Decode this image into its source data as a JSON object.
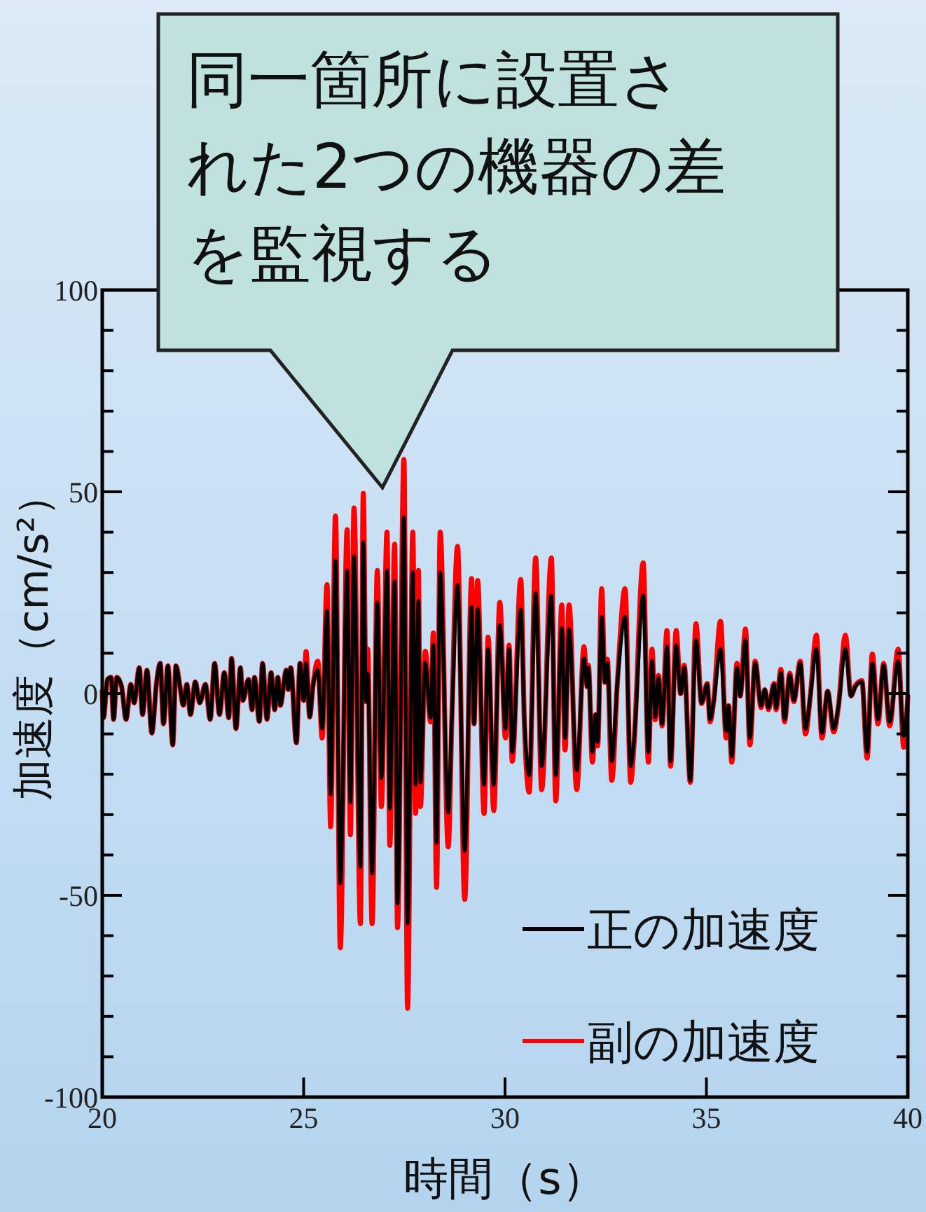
{
  "chart_data": {
    "type": "line",
    "xlabel": "時間（s）",
    "ylabel": "加速度（cm/s²）",
    "xlim": [
      20,
      40
    ],
    "xticks": [
      20,
      25,
      30,
      35,
      40
    ],
    "ylim": [
      -100,
      100
    ],
    "yticks": [
      -100,
      {
        "value": -90,
        "label": null
      },
      {
        "value": -80,
        "label": null
      },
      {
        "value": -70,
        "label": null
      },
      {
        "value": -60,
        "label": null
      },
      -50,
      {
        "value": -40,
        "label": null
      },
      {
        "value": -30,
        "label": null
      },
      {
        "value": -20,
        "label": null
      },
      {
        "value": -10,
        "label": null
      },
      0,
      {
        "value": 10,
        "label": null
      },
      {
        "value": 20,
        "label": null
      },
      {
        "value": 30,
        "label": null
      },
      {
        "value": 40,
        "label": null
      },
      50,
      {
        "value": 60,
        "label": null
      },
      {
        "value": 70,
        "label": null
      },
      {
        "value": 80,
        "label": null
      },
      {
        "value": 90,
        "label": null
      },
      100
    ],
    "grid": false,
    "legend": "bottom right",
    "marker": "none",
    "line_style": "solid",
    "annotations": [
      "同一箇所に設置された2つの機器の差を監視する"
    ],
    "x": [
      20.0,
      20.03,
      20.13,
      20.22,
      20.28,
      20.36,
      20.48,
      20.59,
      20.71,
      20.79,
      20.92,
      21.0,
      21.11,
      21.23,
      21.35,
      21.44,
      21.52,
      21.63,
      21.75,
      21.83,
      21.93,
      22.01,
      22.1,
      22.19,
      22.31,
      22.42,
      22.56,
      22.68,
      22.79,
      22.91,
      23.03,
      23.14,
      23.21,
      23.32,
      23.43,
      23.49,
      23.63,
      23.72,
      23.78,
      23.9,
      23.98,
      24.09,
      24.19,
      24.28,
      24.36,
      24.42,
      24.57,
      24.62,
      24.68,
      24.82,
      24.91,
      25.0,
      25.06,
      25.15,
      25.23,
      25.35,
      25.46,
      25.58,
      25.67,
      25.79,
      25.91,
      26.08,
      26.16,
      26.25,
      26.41,
      26.48,
      26.55,
      26.59,
      26.7,
      26.83,
      26.93,
      27.07,
      27.14,
      27.26,
      27.33,
      27.49,
      27.58,
      27.71,
      27.78,
      27.85,
      27.9,
      28.02,
      28.15,
      28.22,
      28.3,
      28.39,
      28.59,
      28.68,
      28.82,
      29.0,
      29.17,
      29.23,
      29.32,
      29.48,
      29.58,
      29.72,
      29.87,
      30.01,
      30.1,
      30.18,
      30.39,
      30.48,
      30.6,
      30.76,
      30.91,
      31.15,
      31.26,
      31.41,
      31.49,
      31.59,
      31.78,
      31.96,
      32.04,
      32.07,
      32.17,
      32.25,
      32.3,
      32.4,
      32.48,
      32.54,
      32.65,
      32.79,
      32.98,
      33.12,
      33.2,
      33.43,
      33.56,
      33.65,
      33.73,
      33.81,
      33.9,
      34.02,
      34.11,
      34.25,
      34.36,
      34.45,
      34.6,
      34.74,
      34.88,
      35.02,
      35.09,
      35.18,
      35.35,
      35.49,
      35.55,
      35.63,
      35.76,
      35.84,
      35.97,
      36.08,
      36.21,
      36.36,
      36.45,
      36.54,
      36.68,
      36.73,
      36.85,
      36.94,
      37.07,
      37.17,
      37.33,
      37.46,
      37.58,
      37.73,
      37.87,
      38.01,
      38.16,
      38.28,
      38.45,
      38.59,
      38.7,
      38.86,
      38.99,
      39.12,
      39.26,
      39.4,
      39.55,
      39.76,
      39.9,
      40.0
    ],
    "series": [
      {
        "name": "正の加速度",
        "color": "#000000",
        "values": [
          0.6,
          -6.0,
          3.5,
          4.0,
          -6.4,
          4.0,
          1.7,
          -6.4,
          2.3,
          -2.3,
          6.4,
          -5.2,
          5.8,
          -9.8,
          2.9,
          7.5,
          -7.5,
          6.9,
          -12.7,
          6.9,
          1.7,
          -2.9,
          2.3,
          -5.2,
          2.9,
          -2.3,
          2.3,
          -6.4,
          7.5,
          -5.2,
          5.2,
          -6.0,
          8.7,
          -8.7,
          6.4,
          -1.7,
          3.5,
          -4.0,
          4.0,
          -6.9,
          7.5,
          -6.4,
          5.2,
          -4.0,
          4.0,
          -2.9,
          5.8,
          1.0,
          6.4,
          -12.2,
          7.5,
          -1.7,
          7.5,
          -5.8,
          1.7,
          5.8,
          -8.7,
          20.5,
          -25,
          33,
          -47,
          30.5,
          -27,
          34,
          -43,
          37.5,
          -2,
          5,
          -44.6,
          22.6,
          -21,
          30.5,
          -28.5,
          27.8,
          -52,
          43.7,
          -57,
          30,
          -22.6,
          23,
          -22,
          7.6,
          -6,
          12,
          -37,
          30,
          -29.5,
          -6,
          27,
          -39,
          21.5,
          -7.5,
          21,
          -22.6,
          11,
          -22.6,
          17,
          -8.7,
          11,
          -14.5,
          20.8,
          -6.4,
          -20.3,
          24.9,
          -18,
          24.3,
          -20.3,
          16.2,
          -11,
          16,
          -19,
          8.7,
          1.7,
          6.4,
          -14.5,
          -5.2,
          -12,
          19,
          2.8,
          7.5,
          -16.8,
          2.8,
          19,
          -18,
          -12,
          24.3,
          -14.5,
          8.1,
          -5.8,
          3.9,
          -7.5,
          11.6,
          -16.8,
          12,
          0,
          6.4,
          -21.5,
          13.3,
          -2.3,
          2.3,
          -6.4,
          -2,
          11,
          -9.3,
          -3,
          -15.6,
          6.4,
          -0.6,
          13.3,
          -11,
          7.5,
          -3,
          1,
          -3.5,
          2.3,
          -3.5,
          5.2,
          -6.4,
          4.6,
          -1.7,
          7.5,
          -8.7,
          -0.6,
          11,
          -9.8,
          0.6,
          -8.7,
          -3,
          11,
          -0.6,
          1.7,
          2.9,
          -14.5,
          7.5,
          -6.4,
          7,
          -7,
          8,
          -10.5,
          -0.6
        ]
      },
      {
        "name": "副の加速度",
        "color": "#ff0000",
        "values": [
          0.6,
          -6.0,
          3.5,
          4.0,
          -6.4,
          4.0,
          1.7,
          -6.4,
          2.3,
          -2.3,
          6.4,
          -5.2,
          5.8,
          -9.8,
          2.9,
          7.5,
          -7.5,
          6.9,
          -12.7,
          6.9,
          1.7,
          -2.9,
          2.3,
          -5.2,
          2.9,
          -2.3,
          2.3,
          -6.4,
          7.5,
          -5.2,
          5.2,
          -6.0,
          8.7,
          -8.7,
          6.4,
          -1.7,
          3.5,
          -4.0,
          4.0,
          -6.9,
          7.5,
          -6.4,
          5.2,
          -4.0,
          4.0,
          -2.9,
          5.8,
          1.0,
          6.4,
          -12.2,
          7.5,
          -1.7,
          10.4,
          -5.8,
          1.7,
          8.0,
          -11.0,
          27,
          -33,
          44,
          -63,
          40.6,
          -35,
          46,
          -57,
          49.6,
          -2,
          11,
          -57,
          30.5,
          -28,
          40,
          -37.6,
          37,
          -58,
          58,
          -78,
          40,
          -29.7,
          30.5,
          -28,
          10.5,
          -7,
          15,
          -48,
          40,
          -38,
          -6,
          36.5,
          -51,
          28.5,
          -7.5,
          28,
          -29.7,
          14,
          -29,
          22.6,
          -11,
          12,
          -16.8,
          28.3,
          -7,
          -24.4,
          33.6,
          -23.8,
          33.6,
          -26.6,
          22,
          -14,
          22,
          -23.8,
          11.6,
          1.7,
          7,
          -17,
          -5.2,
          -13,
          26,
          2.8,
          8.5,
          -21.5,
          2.8,
          26,
          -22,
          -13,
          32.4,
          -17,
          11,
          -6.5,
          4.5,
          -8,
          15.6,
          -18,
          15.6,
          0,
          7,
          -22,
          17.3,
          -2.5,
          2.5,
          -7,
          -2,
          17.9,
          -11,
          -3,
          -17,
          7.5,
          -0.6,
          16,
          -12.7,
          8,
          -3.5,
          1,
          -4,
          2.5,
          -4,
          6,
          -7,
          5,
          -2,
          8,
          -10,
          -0.6,
          14.5,
          -11,
          0.6,
          -9.5,
          -3,
          14.5,
          -0.6,
          2,
          3.2,
          -16,
          9.8,
          -7.5,
          7.5,
          -8,
          11,
          -13.3,
          -0.6
        ]
      }
    ]
  }
}
